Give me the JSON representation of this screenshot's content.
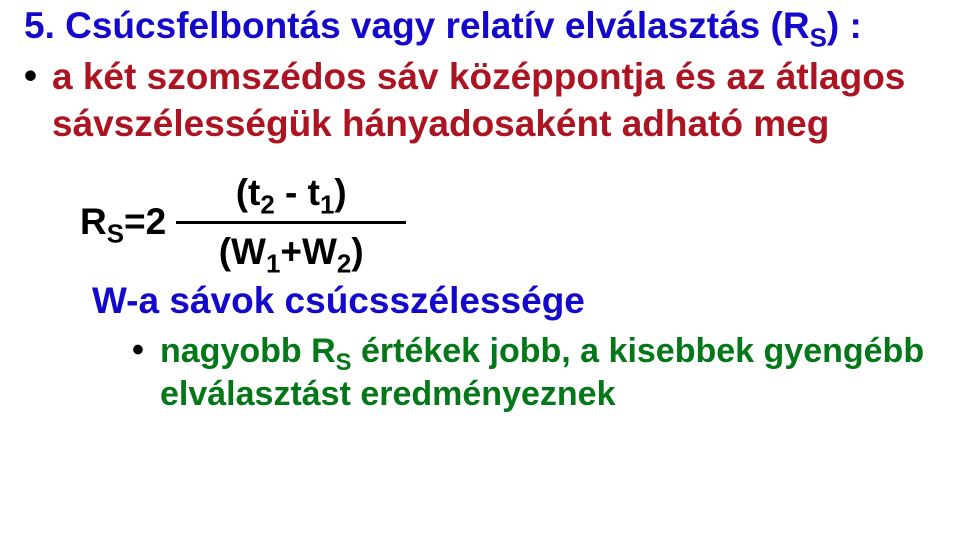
{
  "colors": {
    "title": "#1308cc",
    "bullet1": "#ac1422",
    "formula": "#000000",
    "wdesc": "#1308cc",
    "subbullet": "#047718",
    "dot": "#000000"
  },
  "title": {
    "pre": "5. Csúcsfelbontás vagy relatív elválasztás (R",
    "sub": "S",
    "post": ") :"
  },
  "bullet1": "a két szomszédos sáv középpontja és az átlagos sávszélességük hányadosaként adható  meg",
  "formula": {
    "numer_pre": "(t",
    "numer_sub1": "2",
    "numer_mid": " - t",
    "numer_sub2": "1",
    "numer_post": ")",
    "rs_pre": "R",
    "rs_sub": "S",
    "rs_post": "=2",
    "denom_pre": "(W",
    "denom_sub1": "1",
    "denom_mid": "+W",
    "denom_sub2": "2",
    "denom_post": ")"
  },
  "wdesc": "W-a sávok csúcsszélessége",
  "subbullet": {
    "pre": "nagyobb R",
    "sub": "S",
    "post": " értékek jobb, a kisebbek gyengébb elválasztást eredményeznek"
  },
  "bullet_char": "•"
}
